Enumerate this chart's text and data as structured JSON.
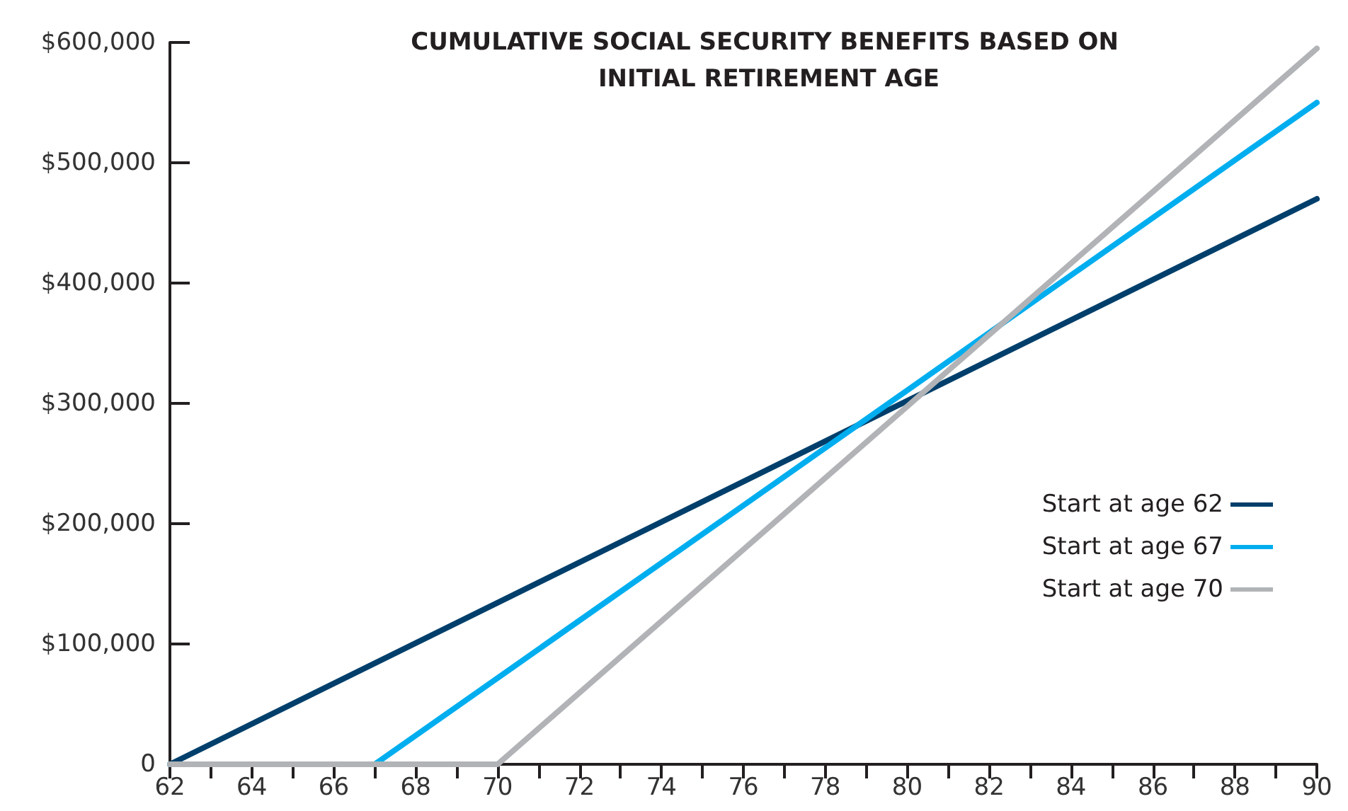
{
  "chart_data": {
    "type": "line",
    "title": "CUMULATIVE SOCIAL SECURITY BENEFITS BASED ON INITIAL RETIREMENT AGE",
    "series": [
      {
        "name": "Start at age 62",
        "color": "#003f6b",
        "x": [
          62,
          90
        ],
        "values": [
          0,
          470000
        ]
      },
      {
        "name": "Start at age 67",
        "color": "#00aeef",
        "x": [
          62,
          67,
          90
        ],
        "values": [
          0,
          0,
          550000
        ]
      },
      {
        "name": "Start at age 70",
        "color": "#b1b3b6",
        "x": [
          62,
          70,
          90
        ],
        "values": [
          0,
          0,
          595000
        ]
      }
    ],
    "xlim": [
      62,
      90
    ],
    "xticks": [
      62,
      {
        "value": 63,
        "label": null
      },
      64,
      {
        "value": 65,
        "label": null
      },
      66,
      {
        "value": 67,
        "label": null
      },
      68,
      {
        "value": 69,
        "label": null
      },
      70,
      {
        "value": 71,
        "label": null
      },
      72,
      {
        "value": 73,
        "label": null
      },
      74,
      {
        "value": 75,
        "label": null
      },
      76,
      {
        "value": 77,
        "label": null
      },
      78,
      {
        "value": 79,
        "label": null
      },
      80,
      {
        "value": 81,
        "label": null
      },
      82,
      {
        "value": 83,
        "label": null
      },
      84,
      {
        "value": 85,
        "label": null
      },
      86,
      {
        "value": 87,
        "label": null
      },
      88,
      {
        "value": 89,
        "label": null
      },
      90
    ],
    "ylim": [
      0,
      600000
    ],
    "yticks": [
      0,
      {
        "value": 100000,
        "label": "$100,000"
      },
      {
        "value": 200000,
        "label": "$200,000"
      },
      {
        "value": 300000,
        "label": "$300,000"
      },
      {
        "value": 400000,
        "label": "$400,000"
      },
      {
        "value": 500000,
        "label": "$500,000"
      },
      {
        "value": 600000,
        "label": "$600,000"
      }
    ],
    "grid": false,
    "legend": "right",
    "marker": "none",
    "line_style": "solid"
  }
}
